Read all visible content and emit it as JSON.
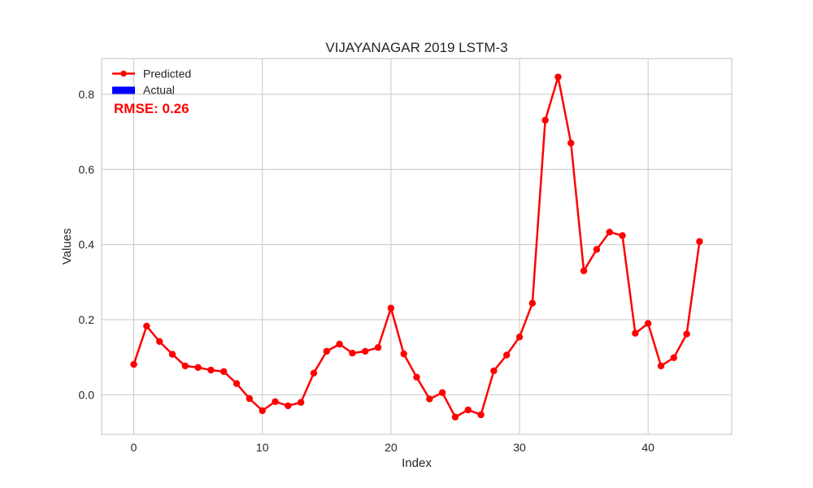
{
  "chart_data": {
    "type": "line",
    "title": "VIJAYANAGAR 2019 LSTM-3",
    "xlabel": "Index",
    "ylabel": "Values",
    "xlim": [
      -2.5,
      46.5
    ],
    "ylim": [
      -0.105,
      0.895
    ],
    "x_ticks": [
      0,
      10,
      20,
      30,
      40
    ],
    "y_ticks": [
      0.0,
      0.2,
      0.4,
      0.6,
      0.8
    ],
    "x_tick_labels": [
      "0",
      "10",
      "20",
      "30",
      "40"
    ],
    "y_tick_labels": [
      "0.0",
      "0.2",
      "0.4",
      "0.6",
      "0.8"
    ],
    "grid": true,
    "legend_position": "top-left",
    "legend": [
      {
        "label": "Predicted",
        "kind": "line-marker",
        "color": "#ff0000"
      },
      {
        "label": "Actual",
        "kind": "patch",
        "color": "#0000ff"
      }
    ],
    "annotations": [
      {
        "text": "RMSE: 0.26",
        "color": "#ff0000"
      }
    ],
    "series": [
      {
        "name": "Predicted",
        "color": "#ff0000",
        "x": [
          0,
          1,
          2,
          3,
          4,
          5,
          6,
          7,
          8,
          9,
          10,
          11,
          12,
          13,
          14,
          15,
          16,
          17,
          18,
          19,
          20,
          21,
          22,
          23,
          24,
          25,
          26,
          27,
          28,
          29,
          30,
          31,
          32,
          33,
          34,
          35,
          36,
          37,
          38,
          39,
          40,
          41,
          42,
          43,
          44
        ],
        "values": [
          0.081,
          0.183,
          0.142,
          0.108,
          0.077,
          0.073,
          0.066,
          0.062,
          0.03,
          -0.01,
          -0.042,
          -0.018,
          -0.029,
          -0.02,
          0.058,
          0.116,
          0.135,
          0.111,
          0.116,
          0.126,
          0.231,
          0.109,
          0.047,
          -0.011,
          0.006,
          -0.059,
          -0.04,
          -0.053,
          0.064,
          0.106,
          0.154,
          0.244,
          0.731,
          0.846,
          0.67,
          0.33,
          0.387,
          0.433,
          0.424,
          0.164,
          0.19,
          0.077,
          0.099,
          0.162,
          0.408
        ]
      }
    ]
  }
}
